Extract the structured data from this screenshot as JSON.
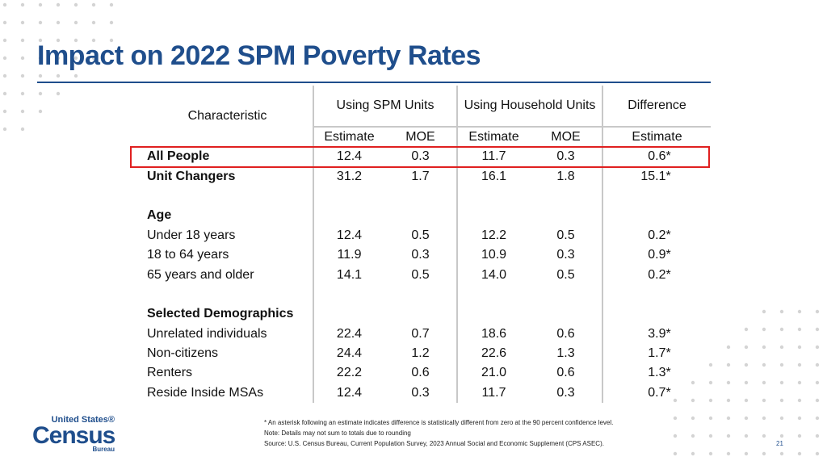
{
  "slide": {
    "title": "Impact on 2022 SPM Poverty Rates",
    "page_number": "21"
  },
  "table": {
    "headers": {
      "characteristic": "Characteristic",
      "spm_units": "Using SPM Units",
      "household_units": "Using Household Units",
      "difference": "Difference"
    },
    "subheaders": {
      "estimate": "Estimate",
      "moe": "MOE",
      "diff_estimate": "Estimate"
    },
    "rows": [
      {
        "label": "All People",
        "spm_est": "12.4",
        "spm_moe": "0.3",
        "hh_est": "11.7",
        "hh_moe": "0.3",
        "diff": "0.6",
        "sig": "*"
      },
      {
        "label": "Unit Changers",
        "spm_est": "31.2",
        "spm_moe": "1.7",
        "hh_est": "16.1",
        "hh_moe": "1.8",
        "diff": "15.1",
        "sig": "*"
      },
      {
        "label": "Age"
      },
      {
        "label": "Under 18 years",
        "spm_est": "12.4",
        "spm_moe": "0.5",
        "hh_est": "12.2",
        "hh_moe": "0.5",
        "diff": "0.2",
        "sig": "*"
      },
      {
        "label": "18 to 64 years",
        "spm_est": "11.9",
        "spm_moe": "0.3",
        "hh_est": "10.9",
        "hh_moe": "0.3",
        "diff": "0.9",
        "sig": "*"
      },
      {
        "label": "65 years and older",
        "spm_est": "14.1",
        "spm_moe": "0.5",
        "hh_est": "14.0",
        "hh_moe": "0.5",
        "diff": "0.2",
        "sig": "*"
      },
      {
        "label": "Selected Demographics"
      },
      {
        "label": "Unrelated individuals",
        "spm_est": "22.4",
        "spm_moe": "0.7",
        "hh_est": "18.6",
        "hh_moe": "0.6",
        "diff": "3.9",
        "sig": "*"
      },
      {
        "label": "Non-citizens",
        "spm_est": "24.4",
        "spm_moe": "1.2",
        "hh_est": "22.6",
        "hh_moe": "1.3",
        "diff": "1.7",
        "sig": "*"
      },
      {
        "label": "Renters",
        "spm_est": "22.2",
        "spm_moe": "0.6",
        "hh_est": "21.0",
        "hh_moe": "0.6",
        "diff": "1.3",
        "sig": "*"
      },
      {
        "label": "Reside Inside MSAs",
        "spm_est": "12.4",
        "spm_moe": "0.3",
        "hh_est": "11.7",
        "hh_moe": "0.3",
        "diff": "0.7",
        "sig": "*"
      }
    ]
  },
  "logo": {
    "line1": "United States®",
    "line2": "Census",
    "line3": "Bureau"
  },
  "footnotes": {
    "asterisk": "* An asterisk following an estimate indicates difference is statistically different from zero at the 90 percent confidence level.",
    "note": "Note: Details may not sum to totals due to rounding",
    "source": "Source: U.S. Census Bureau, Current Population Survey, 2023 Annual Social and Economic Supplement (CPS ASEC)."
  },
  "colors": {
    "title": "#1f4e8c",
    "highlight": "#e02020",
    "dots": "#d4d4d4"
  }
}
